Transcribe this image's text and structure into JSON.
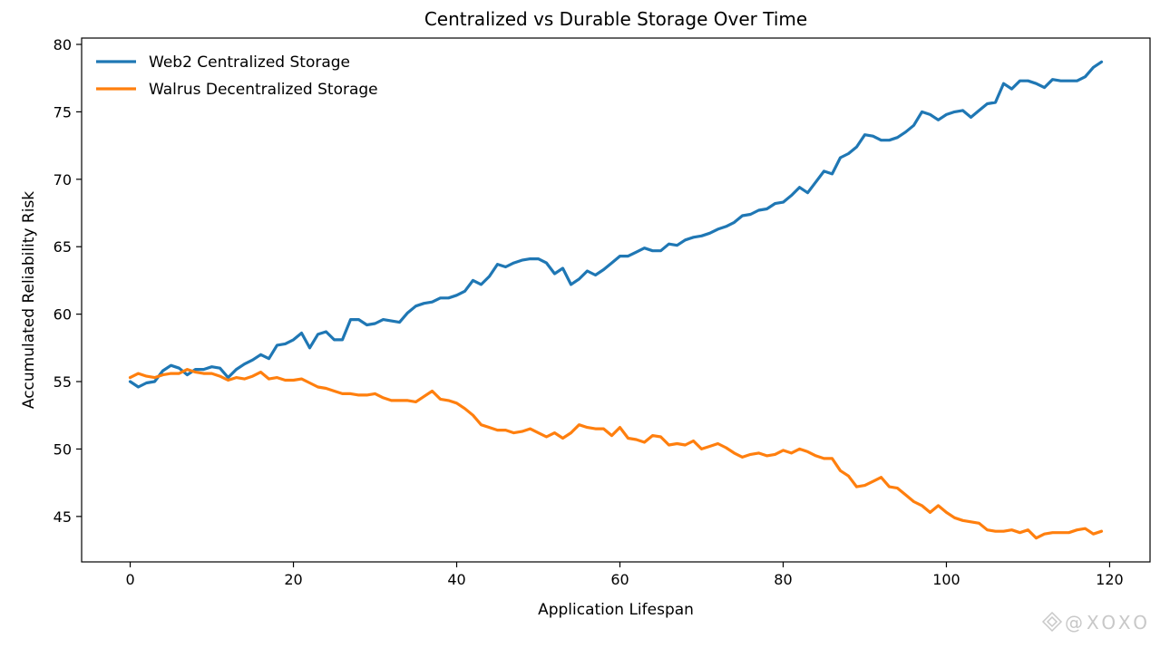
{
  "chart_data": {
    "type": "line",
    "title": "Centralized vs Durable Storage Over Time",
    "xlabel": "Application Lifespan",
    "ylabel": "Accumulated Reliability Risk",
    "xlim": [
      -5.95,
      124.95
    ],
    "ylim": [
      41.63,
      80.47
    ],
    "xticks": [
      0,
      20,
      40,
      60,
      80,
      100,
      120
    ],
    "yticks": [
      45,
      50,
      55,
      60,
      65,
      70,
      75,
      80
    ],
    "grid": false,
    "legend_position": "upper-left",
    "series": [
      {
        "name": "Web2 Centralized Storage",
        "color": "#1f77b4",
        "values": [
          55.0,
          54.6,
          54.9,
          55.0,
          55.8,
          56.2,
          56.0,
          55.5,
          55.9,
          55.9,
          56.1,
          56.0,
          55.3,
          55.9,
          56.3,
          56.6,
          57.0,
          56.7,
          57.7,
          57.8,
          58.1,
          58.6,
          57.5,
          58.5,
          58.7,
          58.1,
          58.1,
          59.6,
          59.6,
          59.2,
          59.3,
          59.6,
          59.5,
          59.4,
          60.1,
          60.6,
          60.8,
          60.9,
          61.2,
          61.2,
          61.4,
          61.7,
          62.5,
          62.2,
          62.8,
          63.7,
          63.5,
          63.8,
          64.0,
          64.1,
          64.1,
          63.8,
          63.0,
          63.4,
          62.2,
          62.6,
          63.2,
          62.9,
          63.3,
          63.8,
          64.3,
          64.3,
          64.6,
          64.9,
          64.7,
          64.7,
          65.2,
          65.1,
          65.5,
          65.7,
          65.8,
          66.0,
          66.3,
          66.5,
          66.8,
          67.3,
          67.4,
          67.7,
          67.8,
          68.2,
          68.3,
          68.8,
          69.4,
          69.0,
          69.8,
          70.6,
          70.4,
          71.6,
          71.9,
          72.4,
          73.3,
          73.2,
          72.9,
          72.9,
          73.1,
          73.5,
          74.0,
          75.0,
          74.8,
          74.4,
          74.8,
          75.0,
          75.1,
          74.6,
          75.1,
          75.6,
          75.7,
          77.1,
          76.7,
          77.3,
          77.3,
          77.1,
          76.8,
          77.4,
          77.3,
          77.3,
          77.3,
          77.6,
          78.3,
          78.7
        ]
      },
      {
        "name": "Walrus Decentralized Storage",
        "color": "#ff7f0e",
        "values": [
          55.3,
          55.6,
          55.4,
          55.3,
          55.5,
          55.6,
          55.6,
          55.9,
          55.7,
          55.6,
          55.6,
          55.4,
          55.1,
          55.3,
          55.2,
          55.4,
          55.7,
          55.2,
          55.3,
          55.1,
          55.1,
          55.2,
          54.9,
          54.6,
          54.5,
          54.3,
          54.1,
          54.1,
          54.0,
          54.0,
          54.1,
          53.8,
          53.6,
          53.6,
          53.6,
          53.5,
          53.9,
          54.3,
          53.7,
          53.6,
          53.4,
          53.0,
          52.5,
          51.8,
          51.6,
          51.4,
          51.4,
          51.2,
          51.3,
          51.5,
          51.2,
          50.9,
          51.2,
          50.8,
          51.2,
          51.8,
          51.6,
          51.5,
          51.5,
          51.0,
          51.6,
          50.8,
          50.7,
          50.5,
          51.0,
          50.9,
          50.3,
          50.4,
          50.3,
          50.6,
          50.0,
          50.2,
          50.4,
          50.1,
          49.7,
          49.4,
          49.6,
          49.7,
          49.5,
          49.6,
          49.9,
          49.7,
          50.0,
          49.8,
          49.5,
          49.3,
          49.3,
          48.4,
          48.0,
          47.2,
          47.3,
          47.6,
          47.9,
          47.2,
          47.1,
          46.6,
          46.1,
          45.8,
          45.3,
          45.8,
          45.3,
          44.9,
          44.7,
          44.6,
          44.5,
          44.0,
          43.9,
          43.9,
          44.0,
          43.8,
          44.0,
          43.4,
          43.7,
          43.8,
          43.8,
          43.8,
          44.0,
          44.1,
          43.7,
          43.9
        ]
      }
    ]
  },
  "watermark": "@XOXO"
}
